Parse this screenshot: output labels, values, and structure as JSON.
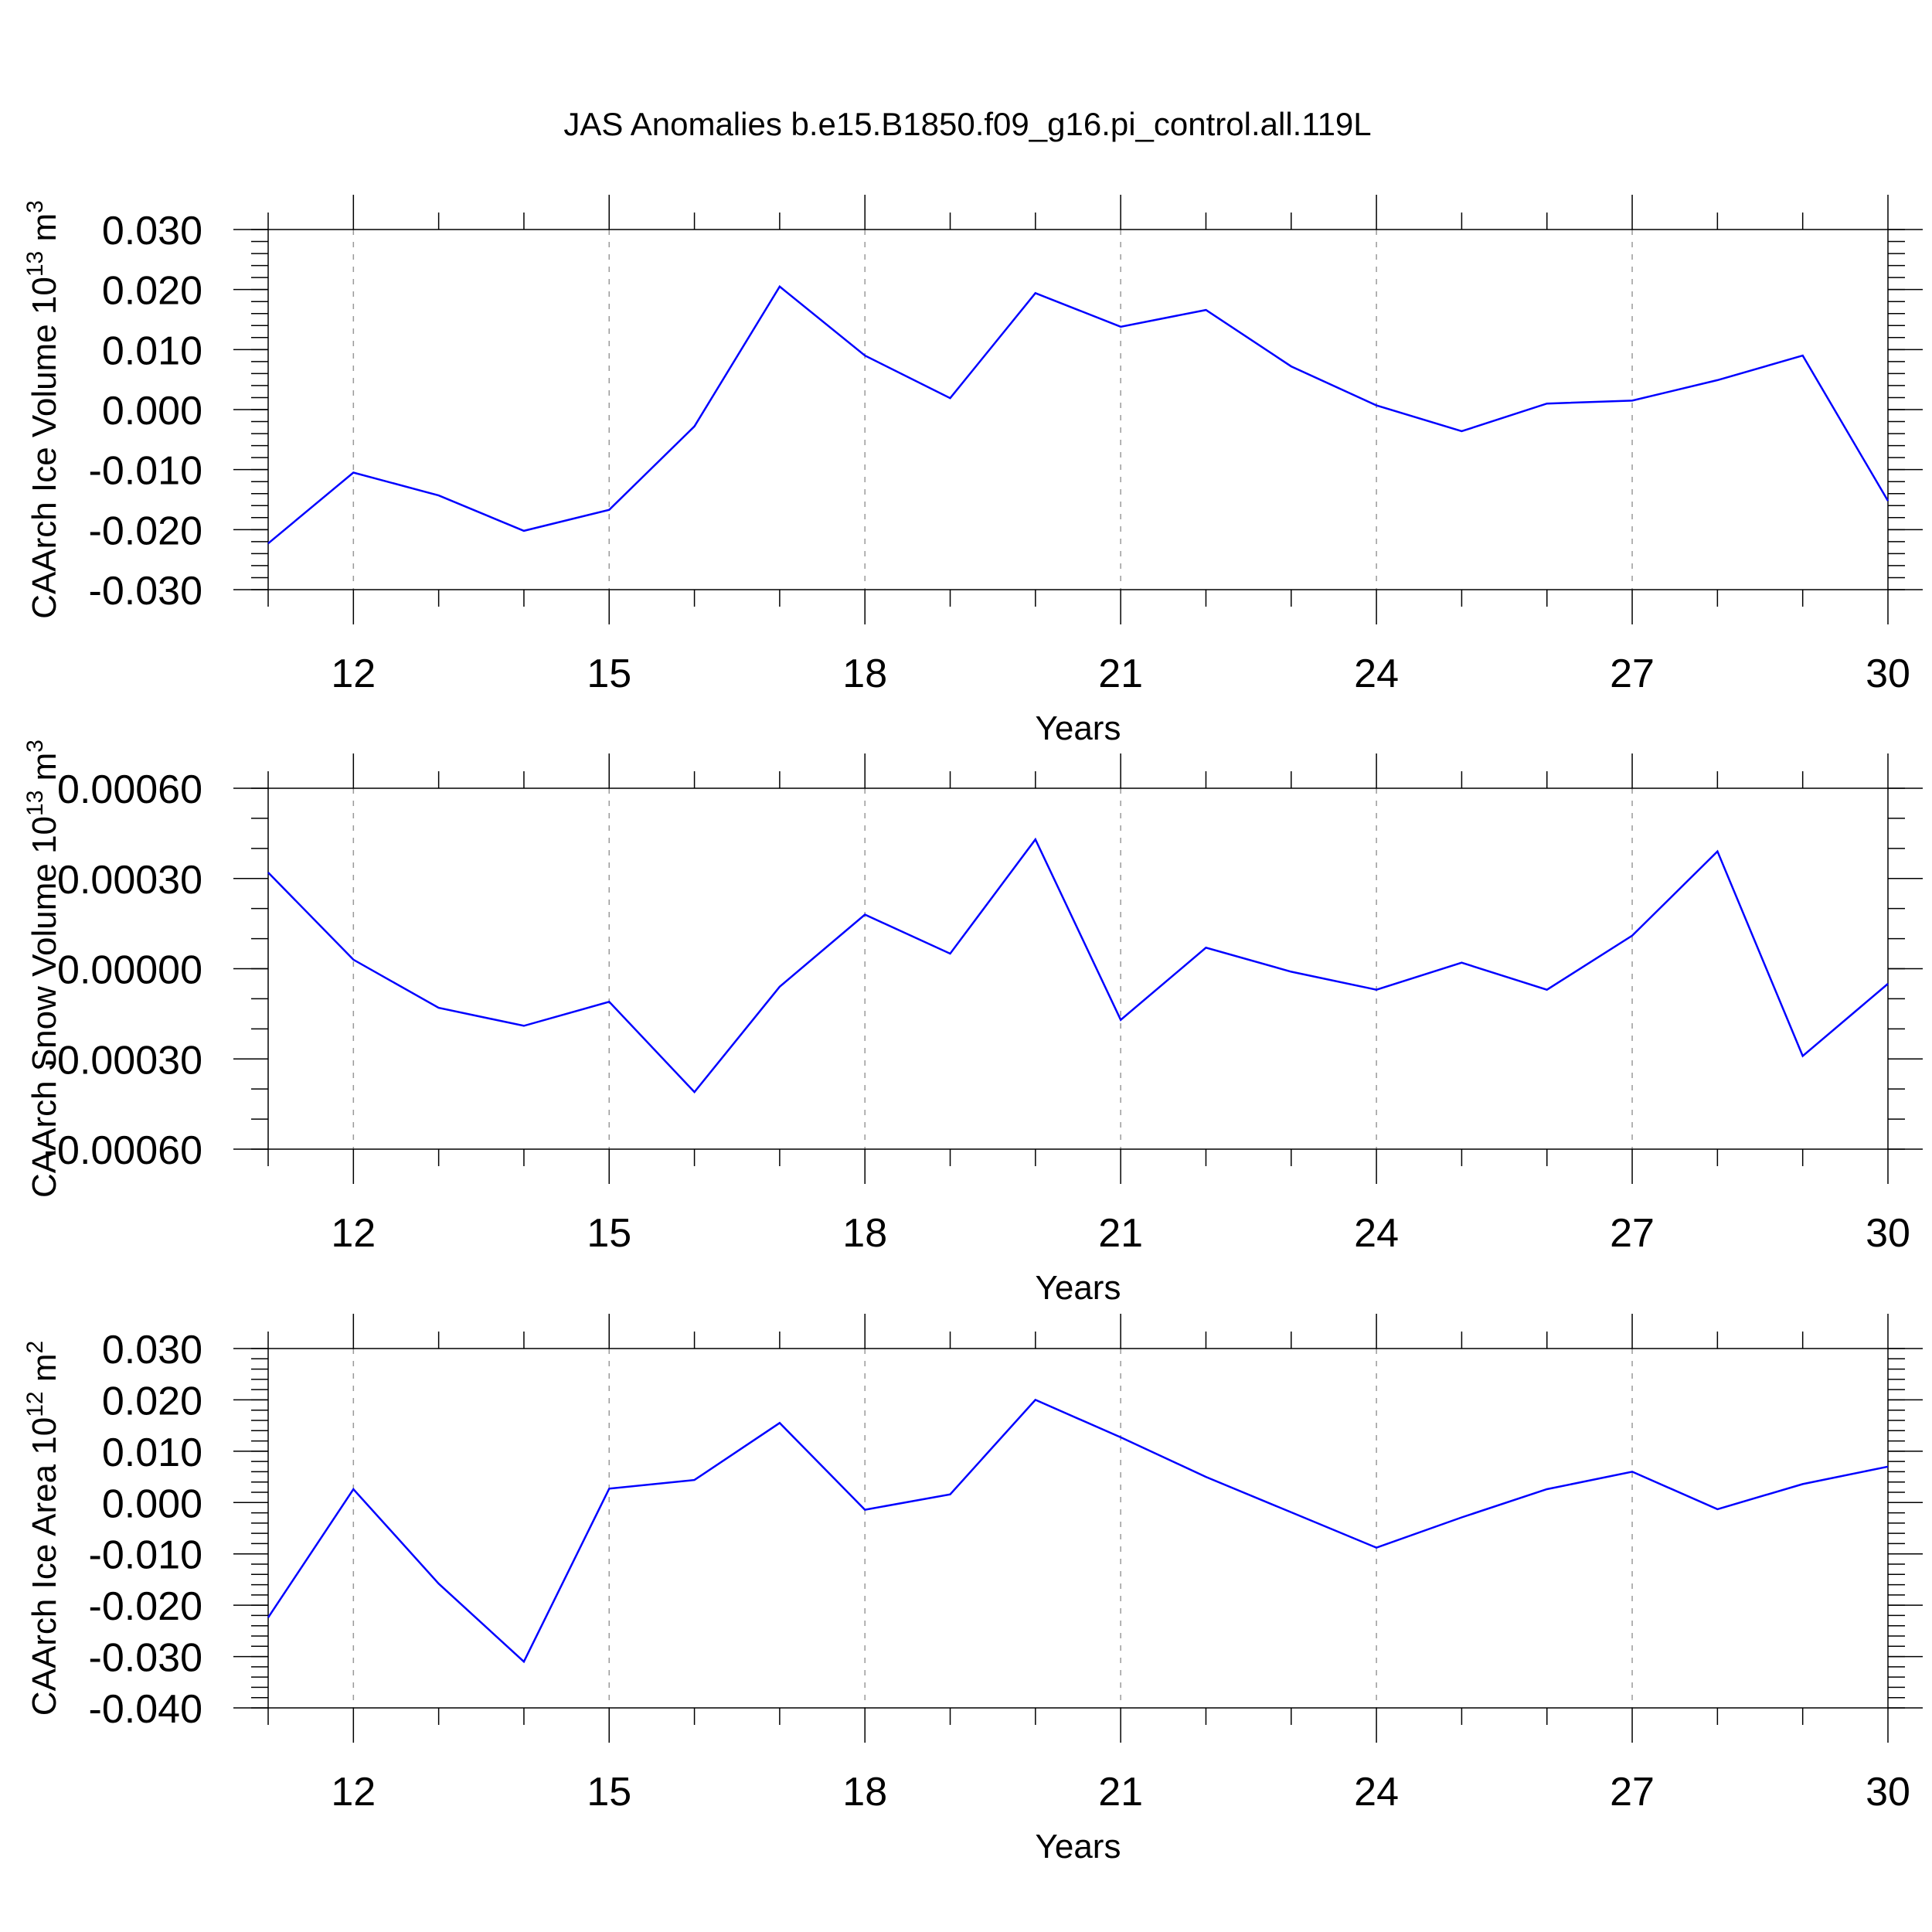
{
  "chart_data": {
    "type": "line",
    "title": "JAS Anomalies b.e15.B1850.f09_g16.pi_control.all.119L",
    "line_color": "#0000ff",
    "panels": [
      {
        "id": "ice-volume",
        "ylabel": "CAArch Ice Volume 10",
        "ylabel_sup": "13",
        "ylabel_unit": " m",
        "ylabel_unit_sup": "3",
        "xlabel": "Years",
        "xlim": [
          11,
          30
        ],
        "ylim": [
          -0.03,
          0.03
        ],
        "y_ticks": [
          -0.03,
          -0.02,
          -0.01,
          0.0,
          0.01,
          0.02,
          0.03
        ],
        "y_tick_labels": [
          "-0.030",
          "-0.020",
          "-0.010",
          "0.000",
          "0.010",
          "0.020",
          "0.030"
        ],
        "y_minor_step": 0.002,
        "x_ticks": [
          12,
          15,
          18,
          21,
          24,
          27,
          30
        ],
        "x_tick_labels": [
          "12",
          "15",
          "18",
          "21",
          "24",
          "27",
          "30"
        ],
        "grid_x": true,
        "series": [
          {
            "name": "CAArch Ice Volume",
            "x": [
              11,
              12,
              13,
              14,
              15,
              16,
              17,
              18,
              19,
              20,
              21,
              22,
              23,
              24,
              25,
              26,
              27,
              28,
              29,
              30
            ],
            "values": [
              -0.0223,
              -0.0105,
              -0.0143,
              -0.0202,
              -0.0167,
              -0.0028,
              0.0205,
              0.009,
              0.0019,
              0.0194,
              0.0138,
              0.0166,
              0.0072,
              0.0007,
              -0.0036,
              0.001,
              0.0015,
              0.0049,
              0.009,
              -0.0152
            ]
          }
        ]
      },
      {
        "id": "snow-volume",
        "ylabel": "CAArch Snow Volume 10",
        "ylabel_sup": "13",
        "ylabel_unit": " m",
        "ylabel_unit_sup": "3",
        "xlabel": "Years",
        "xlim": [
          11,
          30
        ],
        "ylim": [
          -0.0006,
          0.0006
        ],
        "y_ticks": [
          -0.0006,
          -0.0003,
          0.0,
          0.0003,
          0.0006
        ],
        "y_tick_labels": [
          "-0.00060",
          "-0.00030",
          "0.00000",
          "0.00030",
          "0.00060"
        ],
        "y_minor_step": 0.0001,
        "x_ticks": [
          12,
          15,
          18,
          21,
          24,
          27,
          30
        ],
        "x_tick_labels": [
          "12",
          "15",
          "18",
          "21",
          "24",
          "27",
          "30"
        ],
        "grid_x": true,
        "series": [
          {
            "name": "CAArch Snow Volume",
            "x": [
              11,
              12,
              13,
              14,
              15,
              16,
              17,
              18,
              19,
              20,
              21,
              22,
              23,
              24,
              25,
              26,
              27,
              28,
              29,
              30
            ],
            "values": [
              0.00032,
              3e-05,
              -0.00013,
              -0.00019,
              -0.00011,
              -0.00041,
              -6e-05,
              0.00018,
              5e-05,
              0.00043,
              -0.00017,
              7e-05,
              -1e-05,
              -7e-05,
              2e-05,
              -7e-05,
              0.00011,
              0.00039,
              -0.00029,
              -5e-05
            ]
          }
        ]
      },
      {
        "id": "ice-area",
        "ylabel": "CAArch Ice Area 10",
        "ylabel_sup": "12",
        "ylabel_unit": " m",
        "ylabel_unit_sup": "2",
        "xlabel": "Years",
        "xlim": [
          11,
          30
        ],
        "ylim": [
          -0.04,
          0.03
        ],
        "y_ticks": [
          -0.04,
          -0.03,
          -0.02,
          -0.01,
          0.0,
          0.01,
          0.02,
          0.03
        ],
        "y_tick_labels": [
          "-0.040",
          "-0.030",
          "-0.020",
          "-0.010",
          "0.000",
          "0.010",
          "0.020",
          "0.030"
        ],
        "y_minor_step": 0.002,
        "x_ticks": [
          12,
          15,
          18,
          21,
          24,
          27,
          30
        ],
        "x_tick_labels": [
          "12",
          "15",
          "18",
          "21",
          "24",
          "27",
          "30"
        ],
        "grid_x": true,
        "series": [
          {
            "name": "CAArch Ice Area",
            "x": [
              11,
              12,
              13,
              14,
              15,
              16,
              17,
              18,
              19,
              20,
              21,
              22,
              23,
              24,
              25,
              26,
              27,
              28,
              29,
              30
            ],
            "values": [
              -0.0224,
              0.0026,
              -0.0158,
              -0.031,
              0.0027,
              0.0044,
              0.0155,
              -0.0014,
              0.0016,
              0.02,
              0.0127,
              0.005,
              -0.0019,
              -0.0088,
              -0.0029,
              0.0026,
              0.006,
              -0.0013,
              0.0036,
              0.007
            ]
          }
        ]
      }
    ]
  }
}
